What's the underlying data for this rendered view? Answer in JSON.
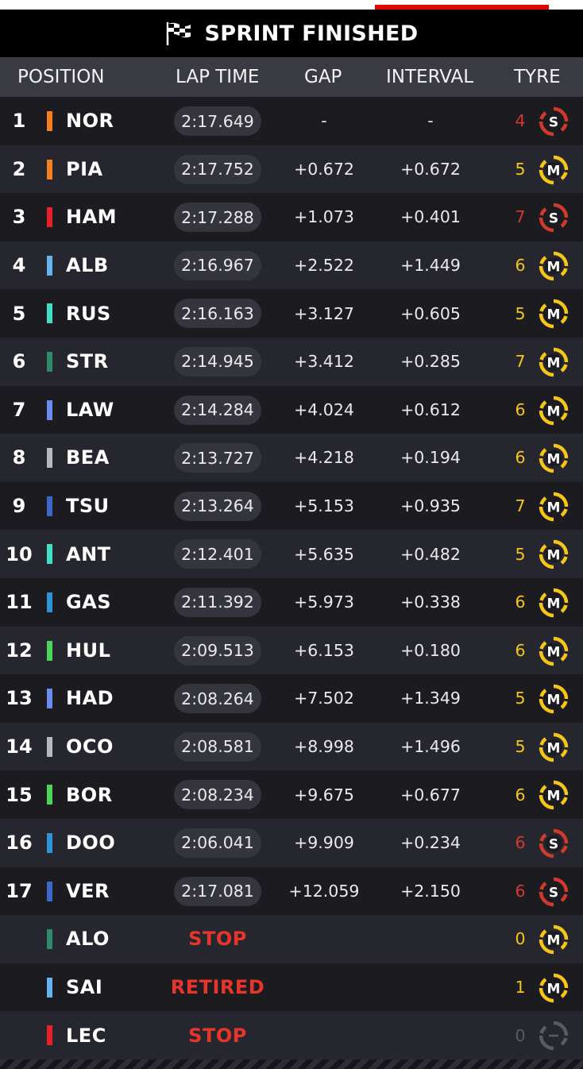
{
  "banner": {
    "title": "SPRINT FINISHED",
    "icon": "chequered-flag-icon"
  },
  "header": {
    "position": "POSITION",
    "lap_time": "LAP TIME",
    "gap": "GAP",
    "interval": "INTERVAL",
    "tyre": "TYRE"
  },
  "colors": {
    "accent": "#e10600",
    "soft": "#d03a2c",
    "medium": "#f5c518",
    "unknown": "#5a5a62",
    "status": "#e8352b"
  },
  "rows": [
    {
      "pos": "1",
      "code": "NOR",
      "team_color": "#f58020",
      "lap": "2:17.649",
      "status": "",
      "gap": "-",
      "interval": "-",
      "tyre_laps": "4",
      "tyre": "S"
    },
    {
      "pos": "2",
      "code": "PIA",
      "team_color": "#f58020",
      "lap": "2:17.752",
      "status": "",
      "gap": "+0.672",
      "interval": "+0.672",
      "tyre_laps": "5",
      "tyre": "M"
    },
    {
      "pos": "3",
      "code": "HAM",
      "team_color": "#e8202a",
      "lap": "2:17.288",
      "status": "",
      "gap": "+1.073",
      "interval": "+0.401",
      "tyre_laps": "7",
      "tyre": "S"
    },
    {
      "pos": "4",
      "code": "ALB",
      "team_color": "#64b4f0",
      "lap": "2:16.967",
      "status": "",
      "gap": "+2.522",
      "interval": "+1.449",
      "tyre_laps": "6",
      "tyre": "M"
    },
    {
      "pos": "5",
      "code": "RUS",
      "team_color": "#40e0c8",
      "lap": "2:16.163",
      "status": "",
      "gap": "+3.127",
      "interval": "+0.605",
      "tyre_laps": "5",
      "tyre": "M"
    },
    {
      "pos": "6",
      "code": "STR",
      "team_color": "#2e8b6a",
      "lap": "2:14.945",
      "status": "",
      "gap": "+3.412",
      "interval": "+0.285",
      "tyre_laps": "7",
      "tyre": "M"
    },
    {
      "pos": "7",
      "code": "LAW",
      "team_color": "#6a8cf0",
      "lap": "2:14.284",
      "status": "",
      "gap": "+4.024",
      "interval": "+0.612",
      "tyre_laps": "6",
      "tyre": "M"
    },
    {
      "pos": "8",
      "code": "BEA",
      "team_color": "#b6babd",
      "lap": "2:13.727",
      "status": "",
      "gap": "+4.218",
      "interval": "+0.194",
      "tyre_laps": "6",
      "tyre": "M"
    },
    {
      "pos": "9",
      "code": "TSU",
      "team_color": "#3a68c8",
      "lap": "2:13.264",
      "status": "",
      "gap": "+5.153",
      "interval": "+0.935",
      "tyre_laps": "7",
      "tyre": "M"
    },
    {
      "pos": "10",
      "code": "ANT",
      "team_color": "#40e0c8",
      "lap": "2:12.401",
      "status": "",
      "gap": "+5.635",
      "interval": "+0.482",
      "tyre_laps": "5",
      "tyre": "M"
    },
    {
      "pos": "11",
      "code": "GAS",
      "team_color": "#2f93d8",
      "lap": "2:11.392",
      "status": "",
      "gap": "+5.973",
      "interval": "+0.338",
      "tyre_laps": "6",
      "tyre": "M"
    },
    {
      "pos": "12",
      "code": "HUL",
      "team_color": "#4fd45a",
      "lap": "2:09.513",
      "status": "",
      "gap": "+6.153",
      "interval": "+0.180",
      "tyre_laps": "6",
      "tyre": "M"
    },
    {
      "pos": "13",
      "code": "HAD",
      "team_color": "#6a8cf0",
      "lap": "2:08.264",
      "status": "",
      "gap": "+7.502",
      "interval": "+1.349",
      "tyre_laps": "5",
      "tyre": "M"
    },
    {
      "pos": "14",
      "code": "OCO",
      "team_color": "#b6babd",
      "lap": "2:08.581",
      "status": "",
      "gap": "+8.998",
      "interval": "+1.496",
      "tyre_laps": "5",
      "tyre": "M"
    },
    {
      "pos": "15",
      "code": "BOR",
      "team_color": "#4fd45a",
      "lap": "2:08.234",
      "status": "",
      "gap": "+9.675",
      "interval": "+0.677",
      "tyre_laps": "6",
      "tyre": "M"
    },
    {
      "pos": "16",
      "code": "DOO",
      "team_color": "#2f93d8",
      "lap": "2:06.041",
      "status": "",
      "gap": "+9.909",
      "interval": "+0.234",
      "tyre_laps": "6",
      "tyre": "S"
    },
    {
      "pos": "17",
      "code": "VER",
      "team_color": "#3a68c8",
      "lap": "2:17.081",
      "status": "",
      "gap": "+12.059",
      "interval": "+2.150",
      "tyre_laps": "6",
      "tyre": "S"
    },
    {
      "pos": "",
      "code": "ALO",
      "team_color": "#2e8b6a",
      "lap": "",
      "status": "STOP",
      "gap": "",
      "interval": "",
      "tyre_laps": "0",
      "tyre": "M"
    },
    {
      "pos": "",
      "code": "SAI",
      "team_color": "#64b4f0",
      "lap": "",
      "status": "RETIRED",
      "gap": "",
      "interval": "",
      "tyre_laps": "1",
      "tyre": "M"
    },
    {
      "pos": "",
      "code": "LEC",
      "team_color": "#e8202a",
      "lap": "",
      "status": "STOP",
      "gap": "",
      "interval": "",
      "tyre_laps": "0",
      "tyre": "unknown"
    }
  ]
}
